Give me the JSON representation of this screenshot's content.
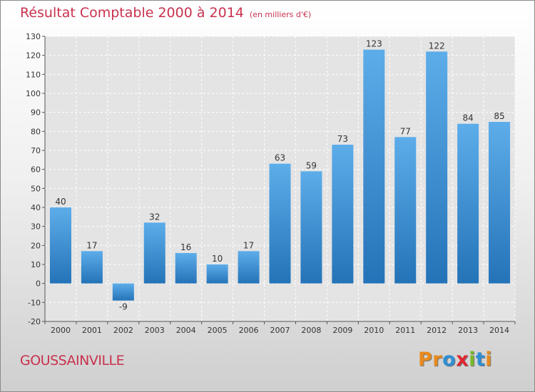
{
  "header": {
    "title": "Résultat Comptable 2000 à 2014",
    "unit": "(en milliers d'€)"
  },
  "footer": {
    "commune": "GOUSSAINVILLE",
    "logo": [
      "P",
      "r",
      "o",
      "x",
      "i",
      "t",
      "i"
    ]
  },
  "colors": {
    "title": "#c8324e",
    "bar_light": "#5dadea",
    "bar_dark": "#2473b8",
    "logo": [
      "#e98a1c",
      "#e98a1c",
      "#2f8fd3",
      "#e0262f",
      "#79b928",
      "#2f8fd3",
      "#e98a1c"
    ]
  },
  "chart_data": {
    "type": "bar",
    "title": "Résultat Comptable 2000 à 2014",
    "subtitle": "(en milliers d'€)",
    "categories": [
      "2000",
      "2001",
      "2002",
      "2003",
      "2004",
      "2005",
      "2006",
      "2007",
      "2008",
      "2009",
      "2010",
      "2011",
      "2012",
      "2013",
      "2014"
    ],
    "values": [
      40,
      17,
      -9,
      32,
      16,
      10,
      17,
      63,
      59,
      73,
      123,
      77,
      122,
      84,
      85
    ],
    "ylim": [
      -20,
      130
    ],
    "yticks": [
      -20,
      -10,
      0,
      10,
      20,
      30,
      40,
      50,
      60,
      70,
      80,
      90,
      100,
      110,
      120,
      130
    ],
    "grid": true,
    "xlabel": "",
    "ylabel": ""
  }
}
